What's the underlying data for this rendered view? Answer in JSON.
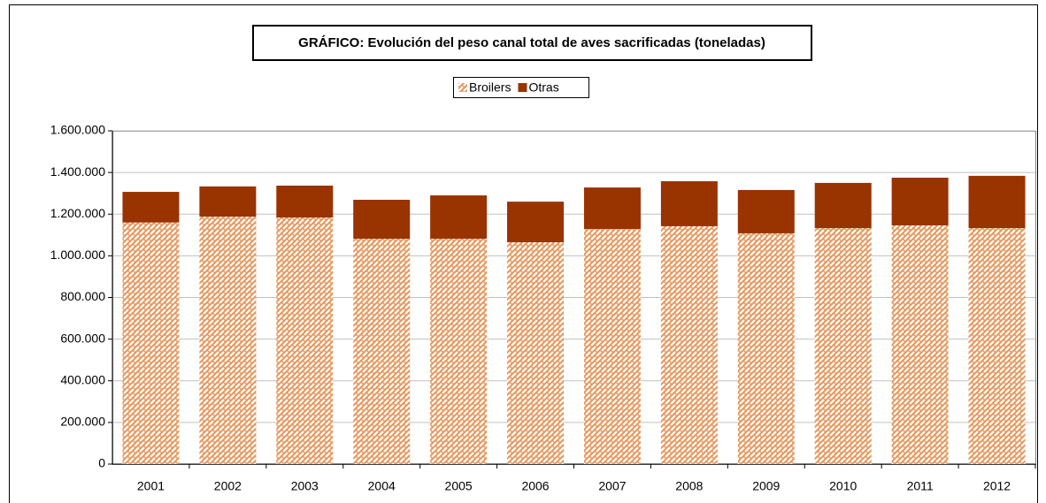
{
  "chart_data": {
    "type": "stacked_bar",
    "title": "GRÁFICO: Evolución del peso canal total de aves sacrificadas (toneladas)",
    "categories": [
      "2001",
      "2002",
      "2003",
      "2004",
      "2005",
      "2006",
      "2007",
      "2008",
      "2009",
      "2010",
      "2011",
      "2012"
    ],
    "series": [
      {
        "name": "Broilers",
        "color": "#e8955a",
        "pattern": "crosshatch",
        "values": [
          1160000,
          1188000,
          1184000,
          1082000,
          1082000,
          1065000,
          1129000,
          1142000,
          1108000,
          1133000,
          1146000,
          1133000
        ]
      },
      {
        "name": "Otras",
        "color": "#993300",
        "values": [
          147000,
          145000,
          153000,
          187000,
          208000,
          195000,
          199000,
          216000,
          208000,
          217000,
          229000,
          251000
        ]
      }
    ],
    "ylim": [
      0,
      1600000
    ],
    "yticks": [
      0,
      {
        "value": 200000,
        "label": "200.000"
      },
      {
        "value": 400000,
        "label": "400.000"
      },
      {
        "value": 600000,
        "label": "600.000"
      },
      {
        "value": 800000,
        "label": "800.000"
      },
      {
        "value": 1000000,
        "label": "1.000.000"
      },
      {
        "value": 1200000,
        "label": "1.200.000"
      },
      {
        "value": 1400000,
        "label": "1.400.000"
      },
      {
        "value": 1600000,
        "label": "1.600.000"
      }
    ],
    "grid": true,
    "legend": "top"
  }
}
